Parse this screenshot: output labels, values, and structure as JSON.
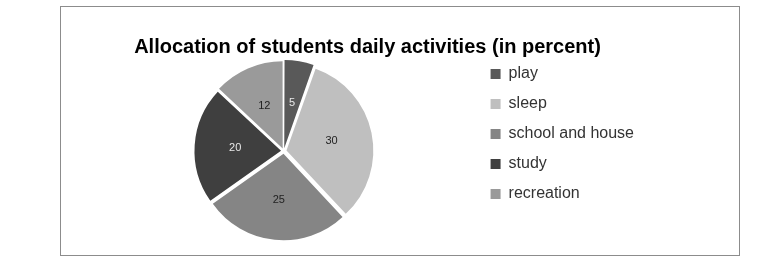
{
  "chart_data": {
    "type": "pie",
    "title": "Allocation of students daily activities (in percent)",
    "categories": [
      "play",
      "sleep",
      "school and house",
      "study",
      "recreation"
    ],
    "values": [
      5,
      30,
      25,
      20,
      12
    ],
    "colors": [
      "#595959",
      "#bfbfbf",
      "#858585",
      "#3f3f3f",
      "#9a9a9a"
    ],
    "legend": "right",
    "data_labels": true
  }
}
